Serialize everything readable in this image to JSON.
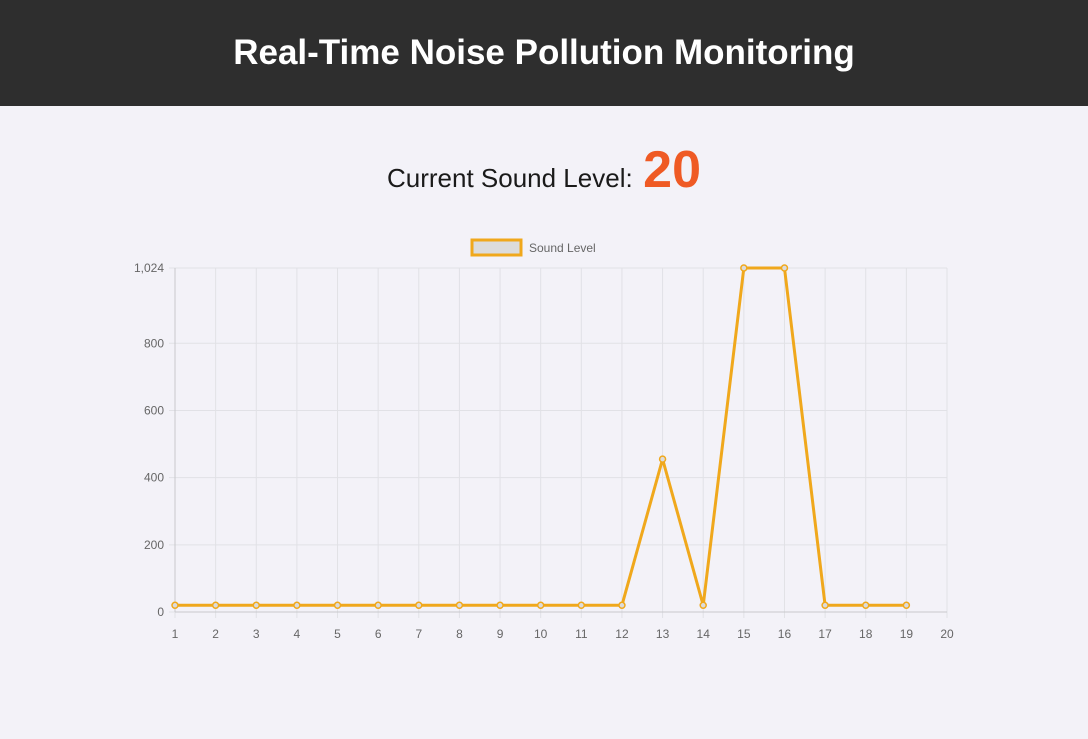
{
  "header": {
    "title": "Real-Time Noise Pollution Monitoring"
  },
  "current": {
    "label": "Current Sound Level:",
    "value": "20"
  },
  "colors": {
    "line": "#f0a81c",
    "accent": "#ef5a24",
    "legend_fill": "#dcdcdc",
    "grid": "#e1e1e6"
  },
  "chart_data": {
    "type": "line",
    "legend": {
      "labels": [
        "Sound Level"
      ],
      "placement": "top-center"
    },
    "x": [
      1,
      2,
      3,
      4,
      5,
      6,
      7,
      8,
      9,
      10,
      11,
      12,
      13,
      14,
      15,
      16,
      17,
      18,
      19,
      20
    ],
    "xlim": [
      1,
      20
    ],
    "ylim": [
      0,
      1024
    ],
    "y_ticks": [
      0,
      200,
      400,
      600,
      800,
      1024
    ],
    "y_tick_labels": [
      "0",
      "200",
      "400",
      "600",
      "800",
      "1,024"
    ],
    "grid": true,
    "series": [
      {
        "name": "Sound Level",
        "x": [
          1,
          2,
          3,
          4,
          5,
          6,
          7,
          8,
          9,
          10,
          11,
          12,
          13,
          14,
          15,
          16,
          17,
          18,
          19
        ],
        "values": [
          20,
          20,
          20,
          20,
          20,
          20,
          20,
          20,
          20,
          20,
          20,
          20,
          455,
          20,
          1024,
          1024,
          20,
          20,
          20
        ]
      }
    ]
  }
}
